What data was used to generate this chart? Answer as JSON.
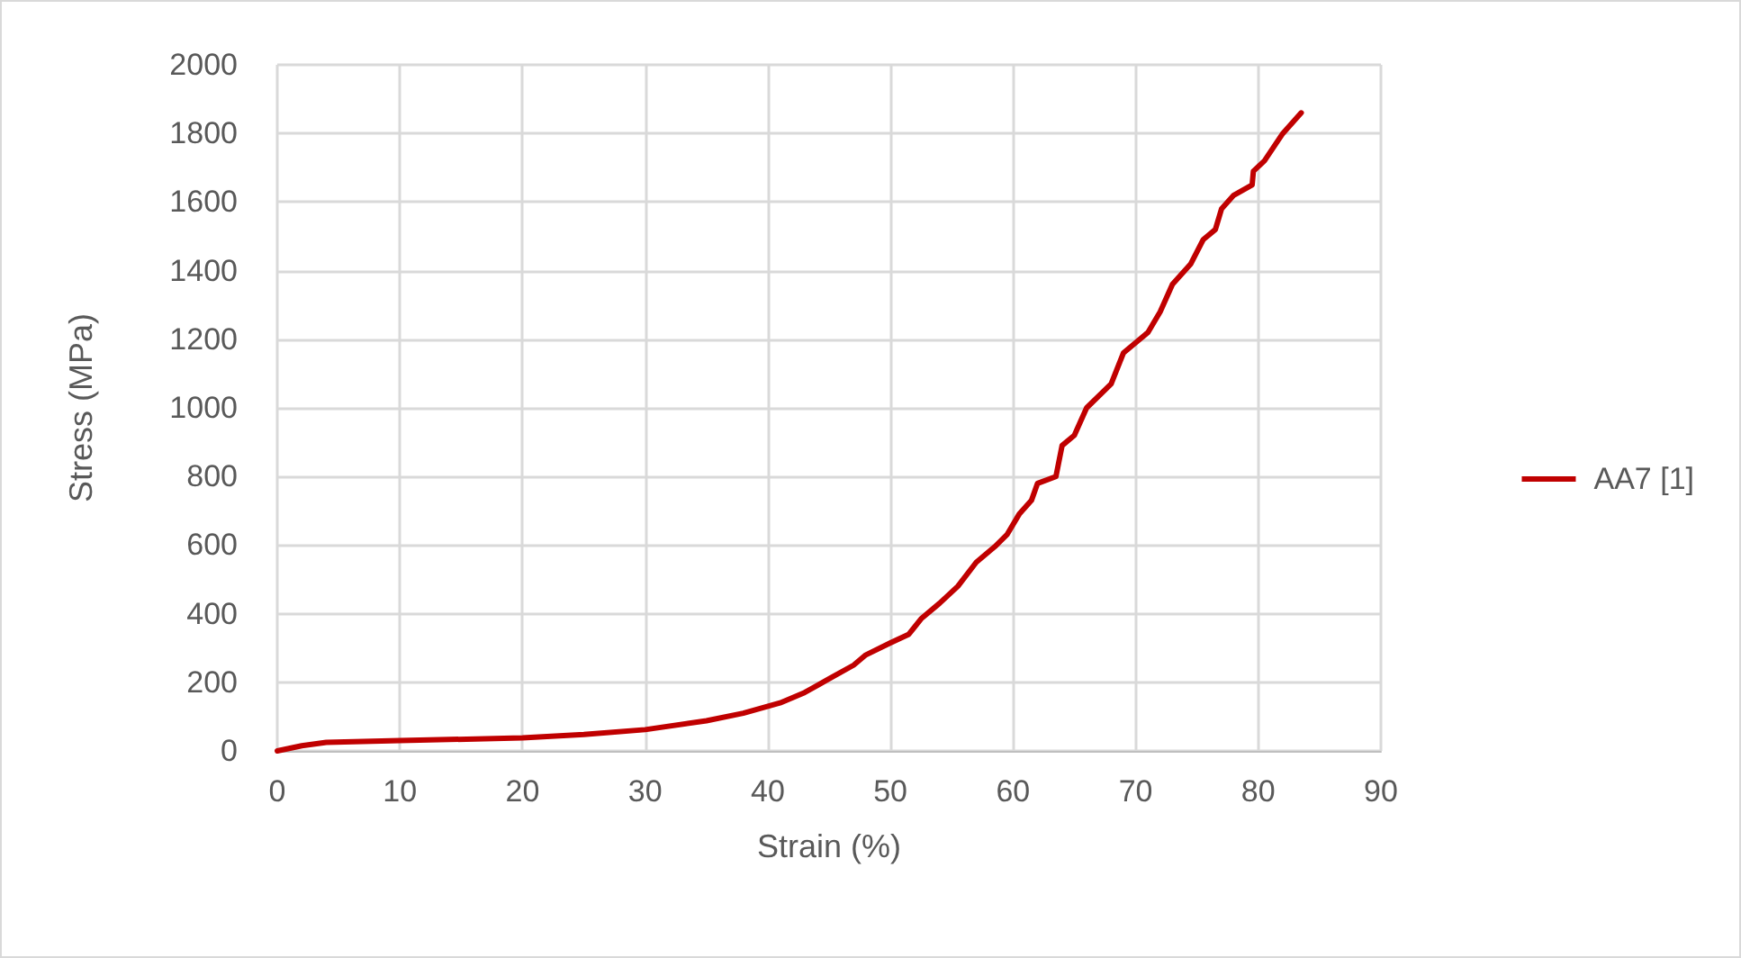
{
  "chart_data": {
    "type": "line",
    "xlabel": "Strain (%)",
    "ylabel": "Stress (MPa)",
    "x": [
      0,
      2,
      4,
      10,
      20,
      25,
      30,
      35,
      38,
      41,
      43,
      45,
      47,
      48,
      50,
      51.5,
      52.5,
      54,
      55.5,
      57,
      58.5,
      59.5,
      60.5,
      61.5,
      62,
      63.5,
      64,
      65,
      66,
      68,
      69,
      71,
      72,
      73,
      74.5,
      75.5,
      76.5,
      77,
      78,
      79.5,
      79.6,
      80.5,
      82,
      83.5
    ],
    "series": [
      {
        "name": "AA7 [1]",
        "color": "#c00000",
        "values": [
          0,
          15,
          25,
          30,
          38,
          48,
          62,
          88,
          110,
          140,
          170,
          210,
          250,
          280,
          315,
          340,
          385,
          430,
          480,
          550,
          595,
          630,
          690,
          730,
          780,
          800,
          890,
          920,
          1000,
          1070,
          1160,
          1220,
          1280,
          1360,
          1420,
          1490,
          1520,
          1580,
          1620,
          1650,
          1690,
          1720,
          1800,
          1860
        ]
      }
    ],
    "xlim": [
      0,
      90
    ],
    "xticks": [
      0,
      10,
      20,
      30,
      40,
      50,
      60,
      70,
      80,
      90
    ],
    "ylim": [
      0,
      2000
    ],
    "yticks": [
      0,
      200,
      400,
      600,
      800,
      1000,
      1200,
      1400,
      1600,
      1800,
      2000
    ],
    "grid": true,
    "legend": "right",
    "marker": "none",
    "line_style": "solid"
  }
}
